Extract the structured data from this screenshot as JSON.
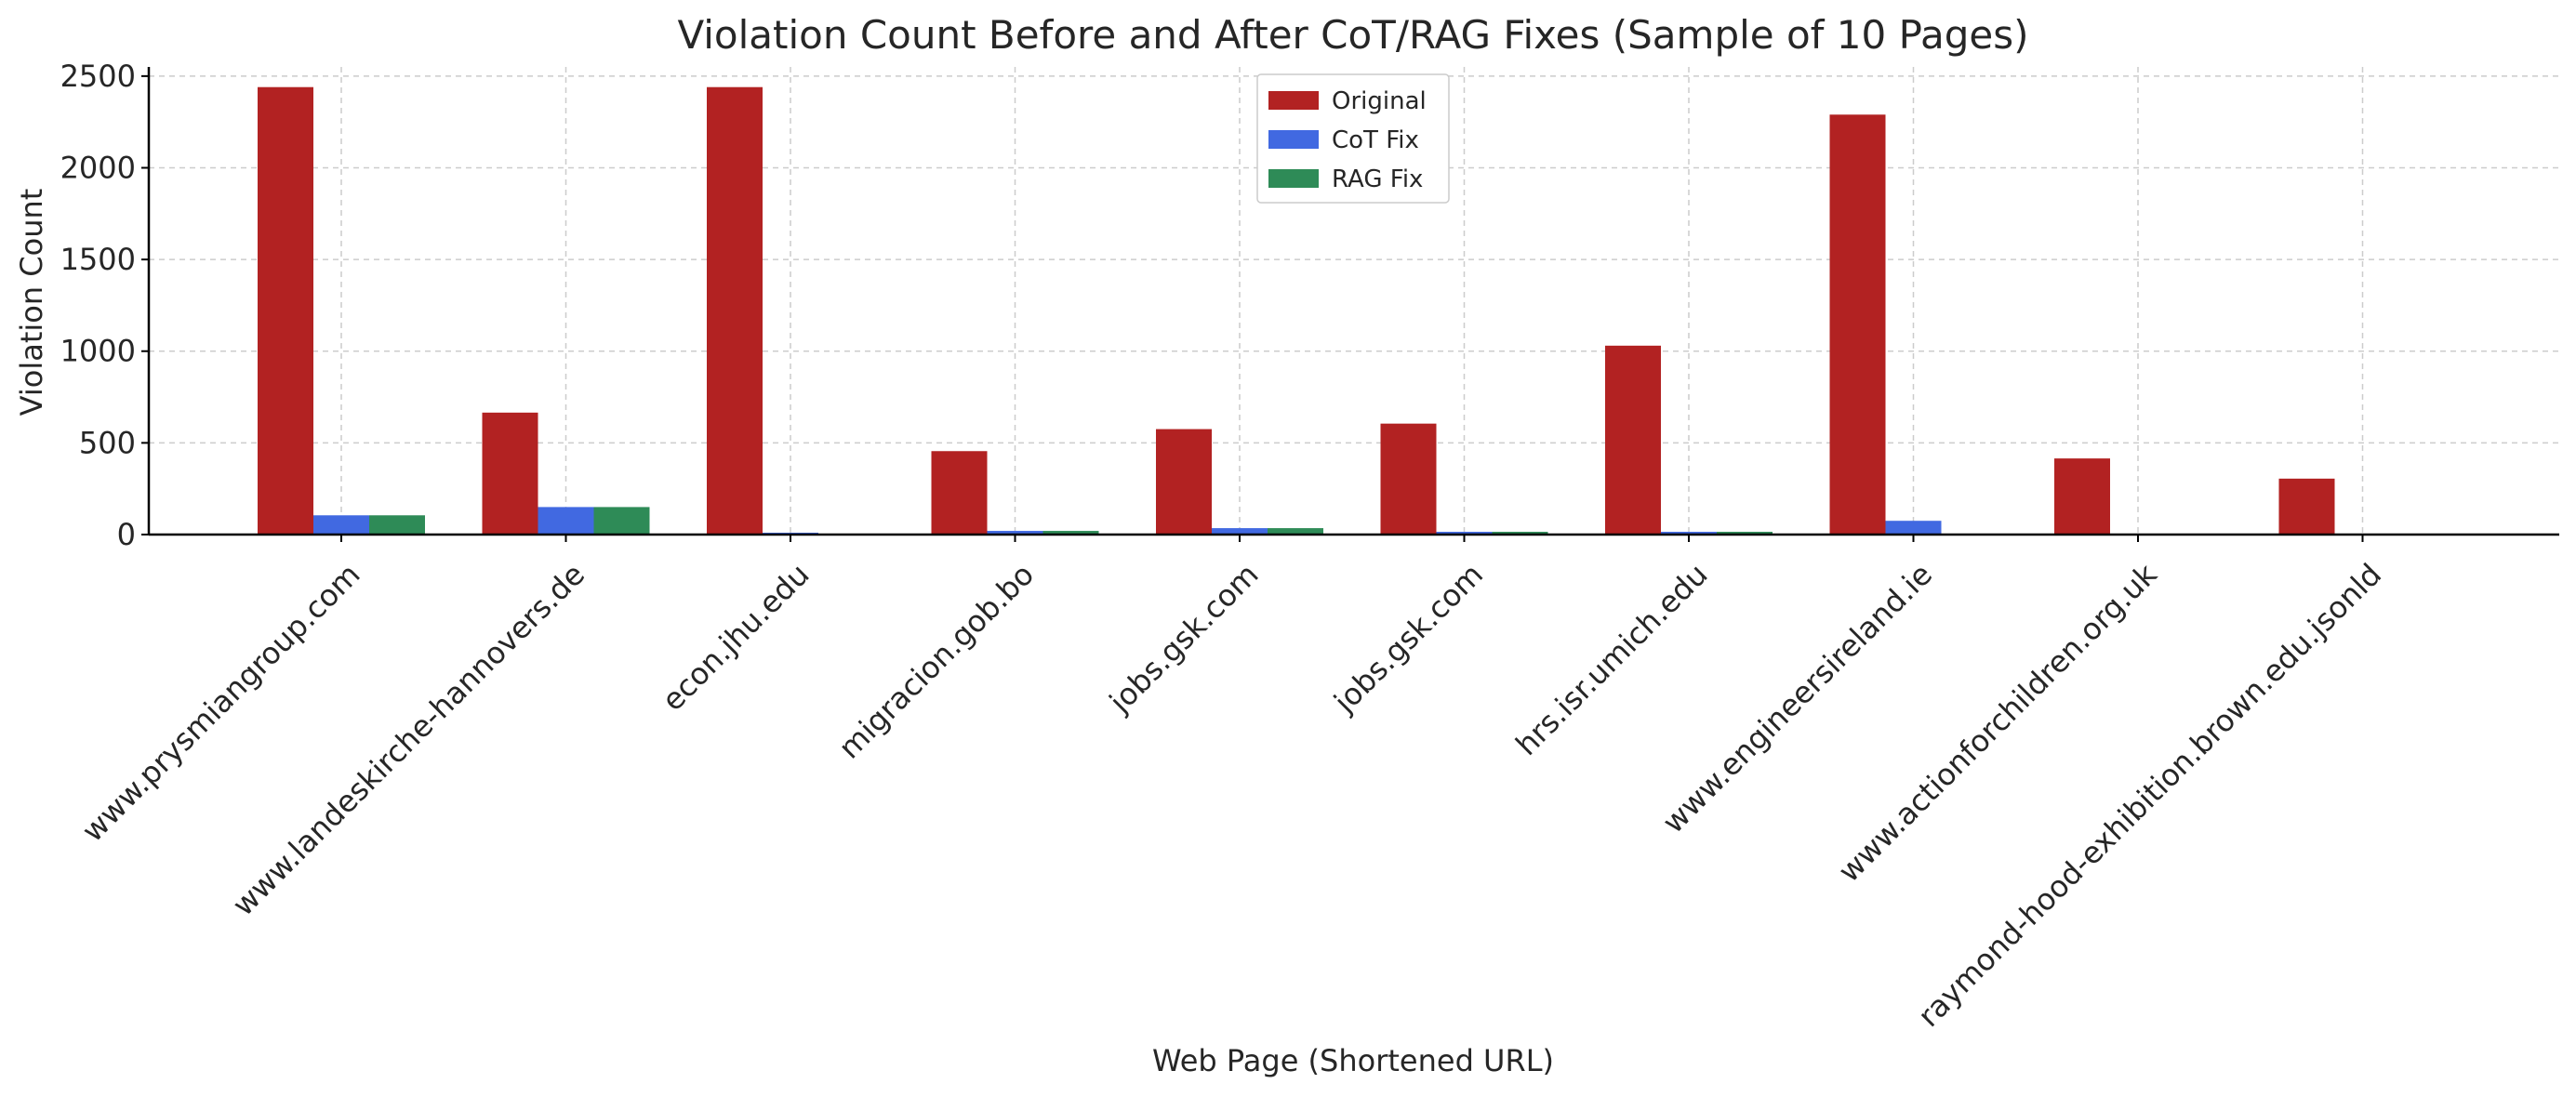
{
  "chart_data": {
    "type": "bar",
    "title": "Violation Count Before and After CoT/RAG Fixes (Sample of 10 Pages)",
    "xlabel": "Web Page (Shortened URL)",
    "ylabel": "Violation Count",
    "ylim": [
      0,
      2550
    ],
    "yticks": [
      0,
      500,
      1000,
      1500,
      2000,
      2500
    ],
    "grid": true,
    "legend_position": "top-center",
    "categories": [
      "www.prysmiangroup.com",
      "www.landeskirche-hannovers.de",
      "econ.jhu.edu",
      "migracion.gob.bo",
      "jobs.gsk.com",
      "jobs.gsk.com",
      "hrs.isr.umich.edu",
      "www.engineersireland.ie",
      "www.actionforchildren.org.uk",
      "raymond-hood-exhibition.brown.edu.jsonld"
    ],
    "series": [
      {
        "name": "Original",
        "color": "#b22222",
        "values": [
          2440,
          665,
          2440,
          455,
          575,
          605,
          1030,
          2290,
          415,
          305
        ]
      },
      {
        "name": "CoT Fix",
        "color": "#4169e1",
        "values": [
          105,
          150,
          10,
          20,
          35,
          15,
          15,
          75,
          0,
          0
        ]
      },
      {
        "name": "RAG Fix",
        "color": "#2e8b57",
        "values": [
          105,
          150,
          5,
          20,
          35,
          15,
          15,
          0,
          0,
          0
        ]
      }
    ]
  }
}
